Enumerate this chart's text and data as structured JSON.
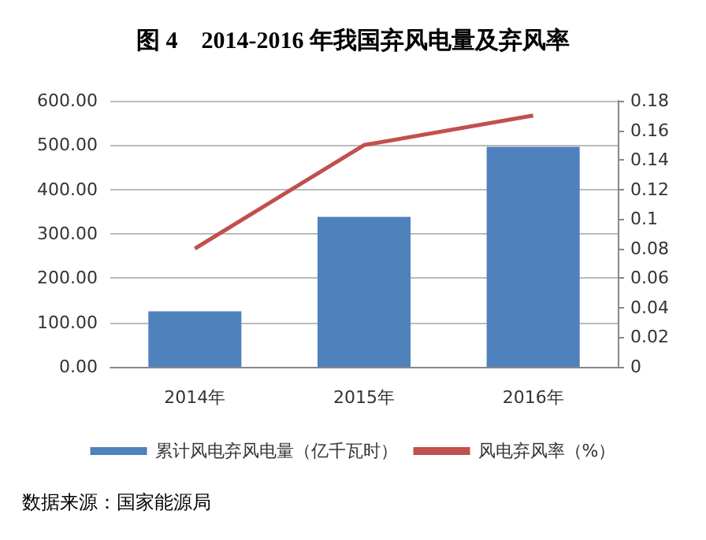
{
  "chart_data": {
    "type": "bar",
    "title": "图 4　2014-2016 年我国弃风电量及弃风率",
    "categories": [
      "2014年",
      "2015年",
      "2016年"
    ],
    "series": [
      {
        "name": "累计风电弃风电量（亿千瓦时）",
        "color": "#4f81bd",
        "values": [
          125,
          338,
          496
        ]
      },
      {
        "name": "风电弃风率（%）",
        "type": "line",
        "axis": "y2",
        "color": "#c0504d",
        "values": [
          0.08,
          0.15,
          0.17
        ]
      }
    ],
    "ylim": [
      0,
      600
    ],
    "yticks": [
      {
        "value": 0,
        "label": "0.00"
      },
      {
        "value": 100,
        "label": "100.00"
      },
      {
        "value": 200,
        "label": "200.00"
      },
      {
        "value": 300,
        "label": "300.00"
      },
      {
        "value": 400,
        "label": "400.00"
      },
      {
        "value": 500,
        "label": "500.00"
      },
      {
        "value": 600,
        "label": "600.00"
      }
    ],
    "y2lim": [
      0,
      0.18
    ],
    "y2ticks": [
      0,
      0.02,
      0.04,
      0.06,
      0.08,
      0.1,
      0.12,
      0.14,
      0.16,
      0.18
    ],
    "grid": "y",
    "legend": "bottom",
    "marker": "none",
    "annotations": [
      "数据来源：国家能源局"
    ]
  }
}
